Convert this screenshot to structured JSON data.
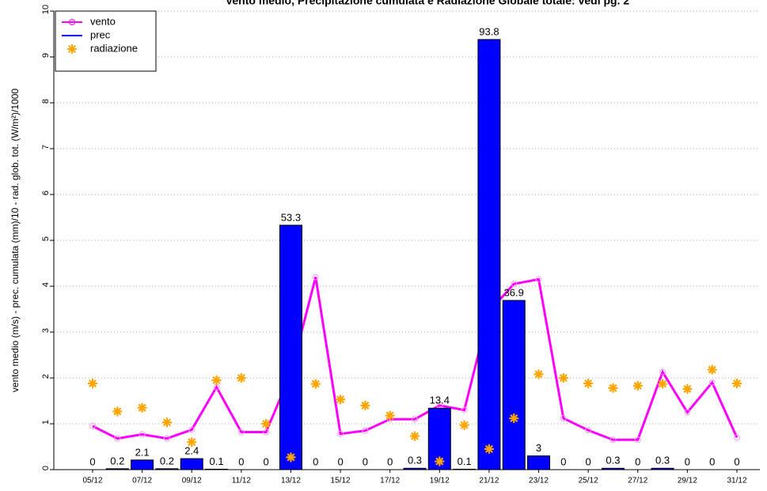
{
  "chart_data": {
    "type": "combo",
    "title": "Vento medio, Precipitazione cumulata e Radiazione Globale totale: vedi pg. 2",
    "y_label": "vento medio (m/s) - prec. cumulata (mm)/10 - rad. glob. tot. (W/m²)/1000",
    "categories": [
      "05/12",
      null,
      "07/12",
      null,
      "09/12",
      null,
      "11/12",
      null,
      "13/12",
      null,
      "15/12",
      null,
      "17/12",
      null,
      "19/12",
      null,
      "21/12",
      null,
      "23/12",
      null,
      "25/12",
      null,
      "27/12",
      null,
      "29/12",
      null,
      "31/12"
    ],
    "ylim": [
      0,
      10
    ],
    "yticks": [
      0,
      1,
      2,
      3,
      4,
      5,
      6,
      7,
      8,
      9,
      10
    ],
    "grid": true,
    "legend": "top-left",
    "series": [
      {
        "name": "vento",
        "type": "line",
        "color": "#ff00ff",
        "values": [
          0.95,
          0.68,
          0.77,
          0.68,
          0.87,
          1.8,
          0.82,
          0.82,
          2.1,
          4.2,
          0.78,
          0.85,
          1.1,
          1.1,
          1.4,
          1.3,
          3.45,
          4.05,
          4.15,
          1.12,
          0.86,
          0.65,
          0.65,
          2.13,
          1.25,
          1.9,
          0.7
        ]
      },
      {
        "name": "prec",
        "type": "bar",
        "color": "#0000ff",
        "values": [
          0,
          0.02,
          0.21,
          0.02,
          0.24,
          0.01,
          0,
          0,
          5.33,
          0,
          0,
          0,
          0,
          0.03,
          1.34,
          0.01,
          9.38,
          3.69,
          0.3,
          0,
          0,
          0.03,
          0,
          0.03,
          0,
          0,
          0
        ],
        "value_labels": [
          "0",
          "0.2",
          "2.1",
          "0.2",
          "2.4",
          "0.1",
          "0",
          "0",
          "53.3",
          "0",
          "0",
          "0",
          "0",
          "0.3",
          "13.4",
          "0.1",
          "93.8",
          "36.9",
          "3",
          "0",
          "0",
          "0.3",
          "0",
          "0.3",
          "0",
          "0",
          "0"
        ]
      },
      {
        "name": "radiazione",
        "type": "scatter",
        "color": "#ffa500",
        "values": [
          1.88,
          1.27,
          1.35,
          1.03,
          0.6,
          1.95,
          2.0,
          1.0,
          0.27,
          1.87,
          1.53,
          1.4,
          1.18,
          0.73,
          0.18,
          0.97,
          0.45,
          1.12,
          2.08,
          2.0,
          1.88,
          1.78,
          1.83,
          1.87,
          1.76,
          2.18,
          1.88
        ]
      }
    ]
  }
}
